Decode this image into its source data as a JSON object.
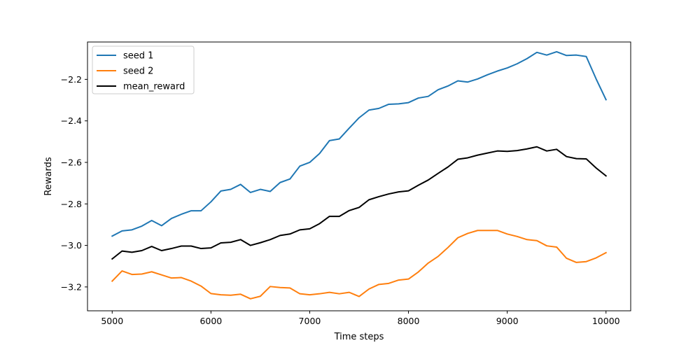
{
  "chart_data": {
    "type": "line",
    "title": "",
    "xlabel": "Time steps",
    "ylabel": "Rewards",
    "xlim": [
      4750,
      10250
    ],
    "ylim": [
      -3.315,
      -2.02
    ],
    "xticks": [
      5000,
      6000,
      7000,
      8000,
      9000,
      10000
    ],
    "xtick_labels": [
      "5000",
      "6000",
      "7000",
      "8000",
      "9000",
      "10000"
    ],
    "yticks": [
      -2.2,
      -2.4,
      -2.6,
      -2.8,
      -3.0,
      -3.2
    ],
    "ytick_labels": [
      "−2.2",
      "−2.4",
      "−2.6",
      "−2.8",
      "−3.0",
      "−3.2"
    ],
    "grid": false,
    "legend_position": "top-left",
    "x": [
      5000,
      5100,
      5200,
      5300,
      5400,
      5500,
      5600,
      5700,
      5800,
      5900,
      6000,
      6100,
      6200,
      6300,
      6400,
      6500,
      6600,
      6700,
      6800,
      6900,
      7000,
      7100,
      7200,
      7300,
      7400,
      7500,
      7600,
      7700,
      7800,
      7900,
      8000,
      8100,
      8200,
      8300,
      8400,
      8500,
      8600,
      8700,
      8800,
      8900,
      9000,
      9100,
      9200,
      9300,
      9400,
      9500,
      9600,
      9700,
      9800,
      9900,
      10000
    ],
    "series": [
      {
        "name": "seed 1",
        "color": "#1f77b4",
        "values": [
          -2.955,
          -2.93,
          -2.925,
          -2.907,
          -2.88,
          -2.905,
          -2.87,
          -2.85,
          -2.833,
          -2.833,
          -2.79,
          -2.738,
          -2.73,
          -2.706,
          -2.745,
          -2.73,
          -2.74,
          -2.697,
          -2.68,
          -2.618,
          -2.6,
          -2.557,
          -2.495,
          -2.487,
          -2.435,
          -2.385,
          -2.348,
          -2.34,
          -2.32,
          -2.318,
          -2.312,
          -2.29,
          -2.282,
          -2.25,
          -2.232,
          -2.207,
          -2.213,
          -2.198,
          -2.178,
          -2.16,
          -2.145,
          -2.125,
          -2.1,
          -2.07,
          -2.083,
          -2.067,
          -2.085,
          -2.083,
          -2.09,
          -2.198,
          -2.298
        ]
      },
      {
        "name": "seed 2",
        "color": "#ff7f0e",
        "values": [
          -3.172,
          -3.123,
          -3.14,
          -3.138,
          -3.127,
          -3.142,
          -3.157,
          -3.155,
          -3.172,
          -3.196,
          -3.232,
          -3.238,
          -3.24,
          -3.235,
          -3.257,
          -3.245,
          -3.198,
          -3.203,
          -3.205,
          -3.233,
          -3.238,
          -3.233,
          -3.226,
          -3.233,
          -3.226,
          -3.246,
          -3.21,
          -3.188,
          -3.183,
          -3.167,
          -3.162,
          -3.128,
          -3.085,
          -3.053,
          -3.01,
          -2.963,
          -2.942,
          -2.928,
          -2.928,
          -2.928,
          -2.945,
          -2.957,
          -2.972,
          -2.977,
          -3.002,
          -3.008,
          -3.062,
          -3.082,
          -3.078,
          -3.06,
          -3.035
        ]
      },
      {
        "name": "mean_reward",
        "color": "#000000",
        "values": [
          -3.065,
          -3.027,
          -3.033,
          -3.025,
          -3.005,
          -3.025,
          -3.015,
          -3.003,
          -3.003,
          -3.015,
          -3.012,
          -2.988,
          -2.985,
          -2.972,
          -3.0,
          -2.987,
          -2.972,
          -2.952,
          -2.945,
          -2.925,
          -2.92,
          -2.895,
          -2.86,
          -2.86,
          -2.832,
          -2.817,
          -2.78,
          -2.765,
          -2.752,
          -2.742,
          -2.737,
          -2.71,
          -2.685,
          -2.653,
          -2.622,
          -2.585,
          -2.578,
          -2.565,
          -2.555,
          -2.545,
          -2.547,
          -2.543,
          -2.535,
          -2.525,
          -2.545,
          -2.537,
          -2.572,
          -2.582,
          -2.583,
          -2.627,
          -2.665
        ]
      }
    ]
  }
}
